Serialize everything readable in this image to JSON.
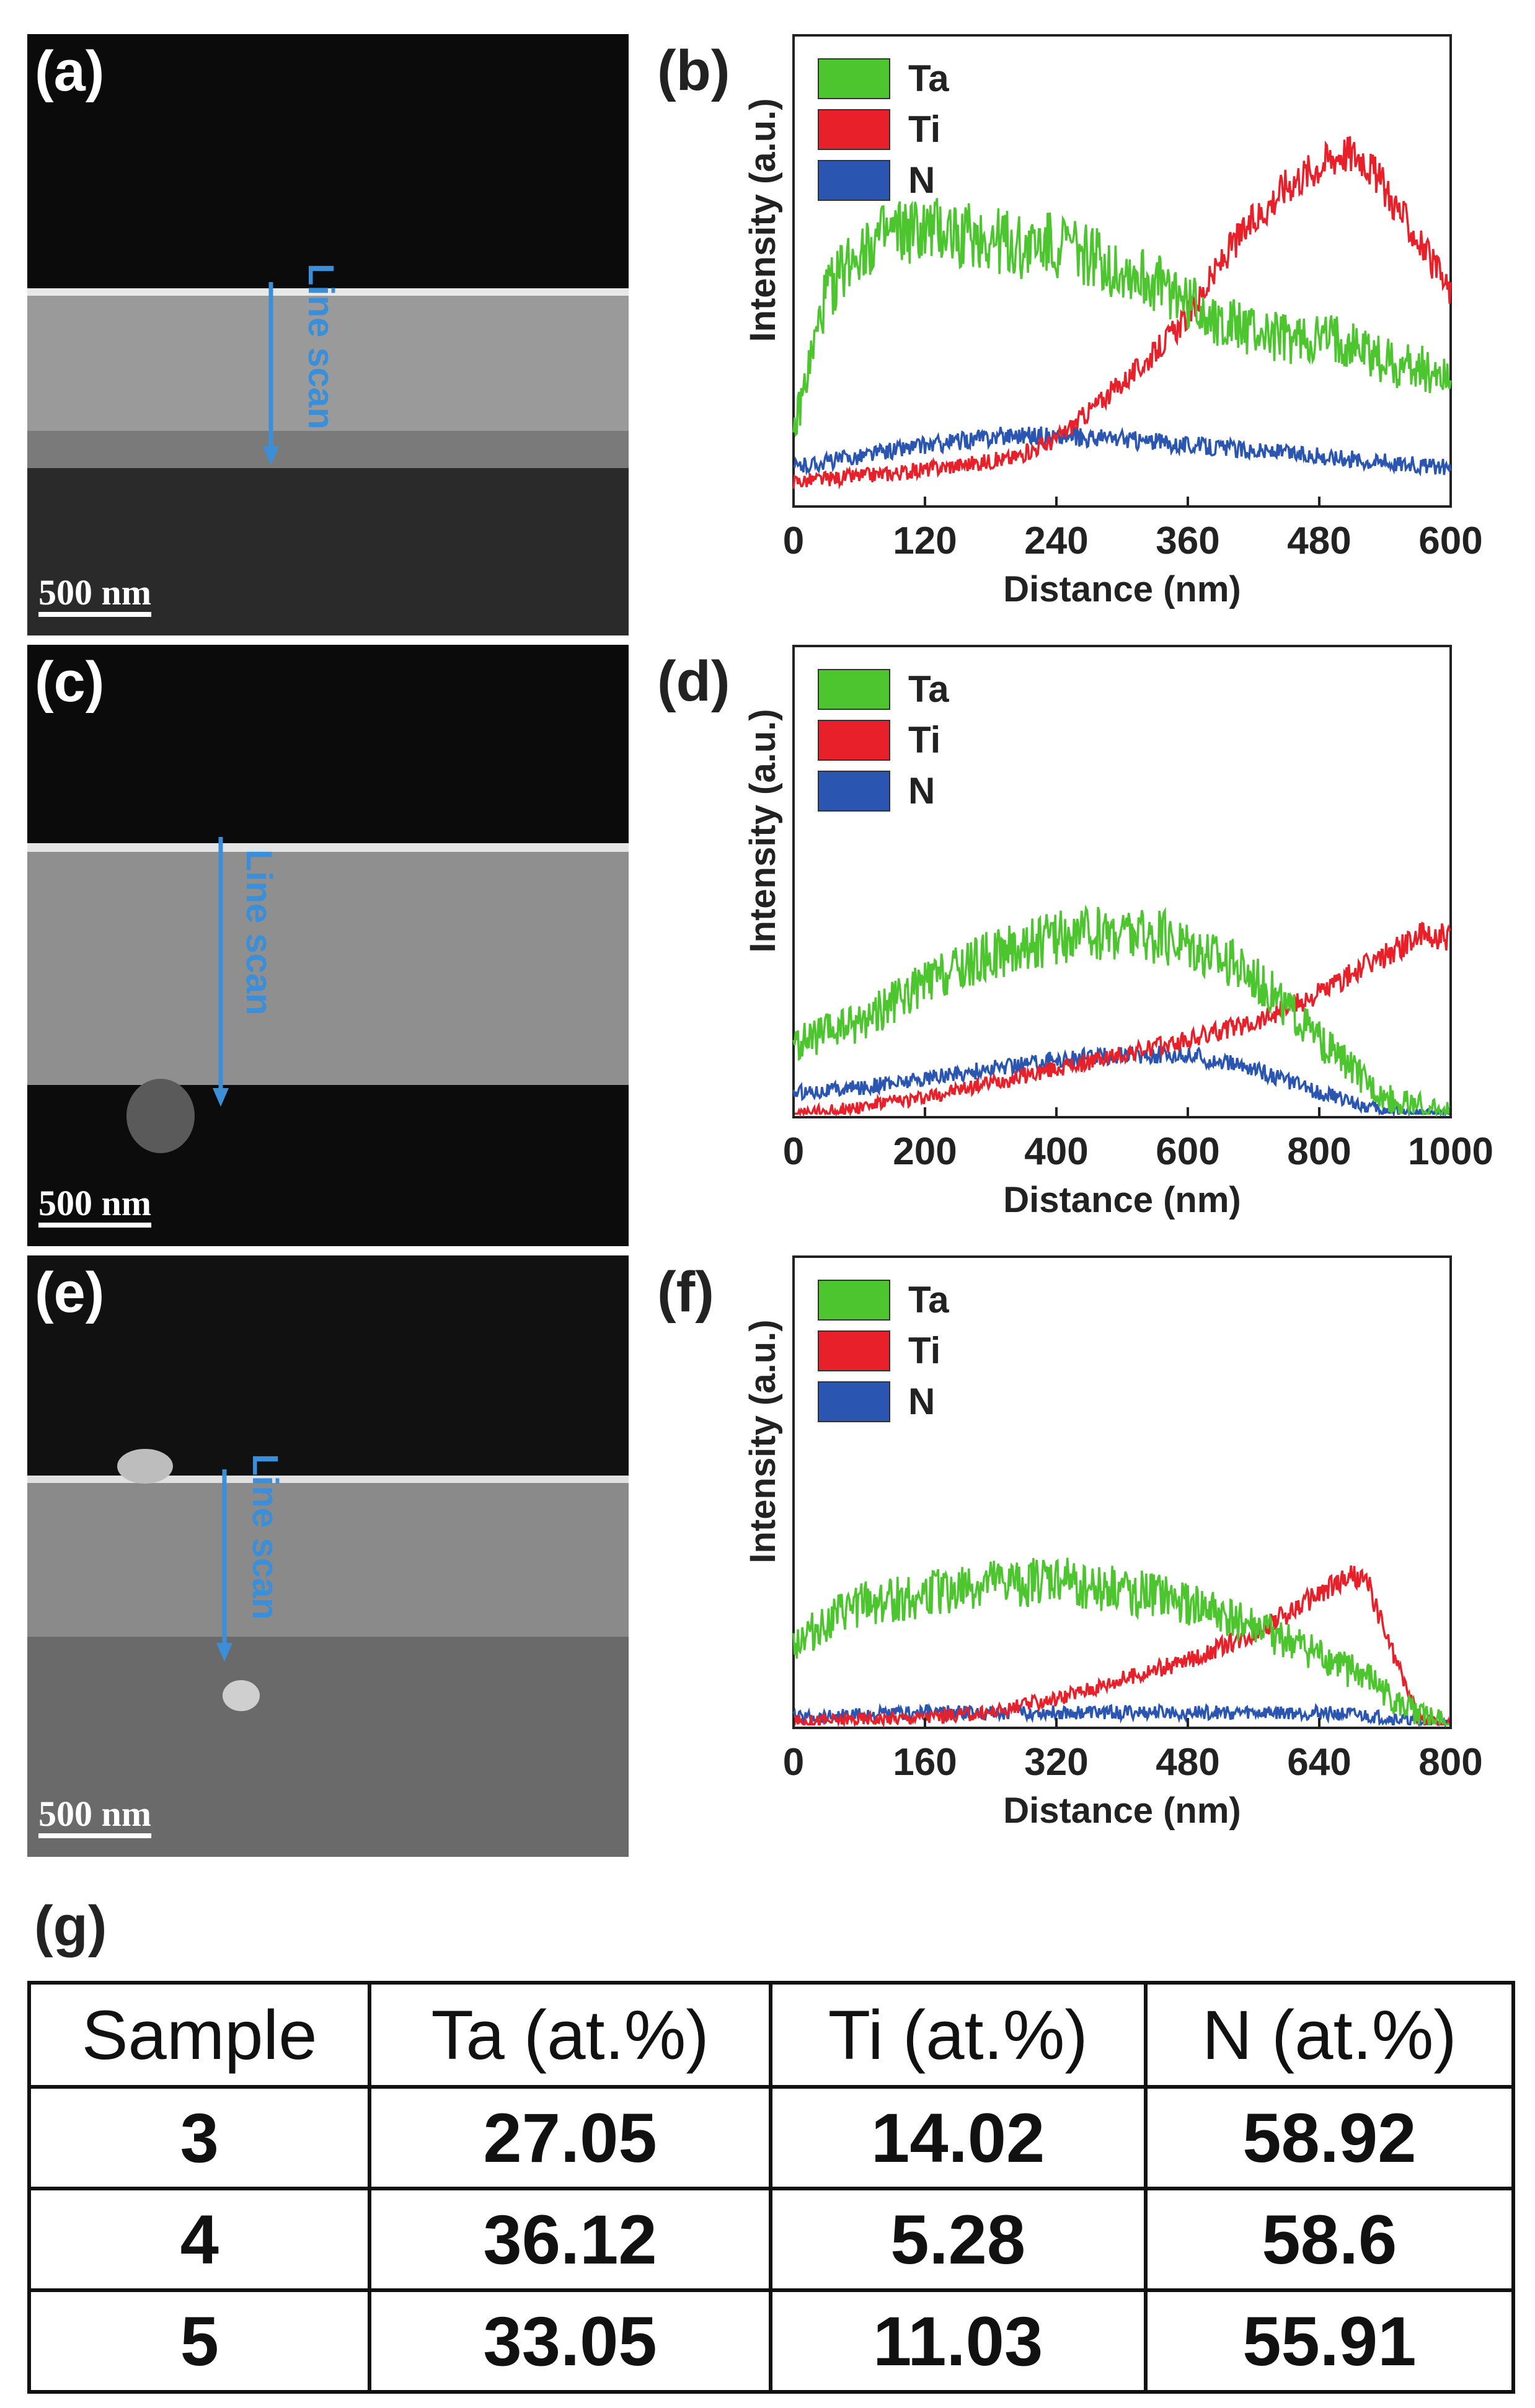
{
  "panels": {
    "a": {
      "label": "(a)",
      "scale_bar": "500 nm",
      "annotation": "Line scan"
    },
    "c": {
      "label": "(c)",
      "scale_bar": "500 nm",
      "annotation": "Line scan"
    },
    "e": {
      "label": "(e)",
      "scale_bar": "500 nm",
      "annotation": "Line scan"
    },
    "g": {
      "label": "(g)"
    }
  },
  "colors": {
    "Ta": "#4cc52f",
    "Ti": "#e8202a",
    "N": "#2a55b0"
  },
  "chart_data": [
    {
      "id": "b",
      "label": "(b)",
      "type": "line",
      "xlabel": "Distance (nm)",
      "ylabel": "Intensity (a.u.)",
      "xlim": [
        0,
        600
      ],
      "xticks": [
        0,
        120,
        240,
        360,
        480,
        600
      ],
      "ylim": [
        0,
        1
      ],
      "legend": [
        "Ta",
        "Ti",
        "N"
      ],
      "legend_position": "top-left",
      "series": [
        {
          "name": "Ta",
          "x": [
            0,
            30,
            60,
            100,
            150,
            200,
            250,
            300,
            350,
            400,
            450,
            500,
            550,
            600
          ],
          "y": [
            0.15,
            0.45,
            0.55,
            0.58,
            0.58,
            0.55,
            0.55,
            0.5,
            0.45,
            0.38,
            0.35,
            0.35,
            0.3,
            0.28
          ]
        },
        {
          "name": "Ti",
          "x": [
            0,
            100,
            200,
            240,
            280,
            320,
            360,
            400,
            450,
            500,
            520,
            560,
            600
          ],
          "y": [
            0.05,
            0.07,
            0.1,
            0.14,
            0.22,
            0.3,
            0.4,
            0.55,
            0.68,
            0.75,
            0.74,
            0.6,
            0.45
          ]
        },
        {
          "name": "N",
          "x": [
            0,
            100,
            200,
            300,
            400,
            500,
            600
          ],
          "y": [
            0.08,
            0.12,
            0.15,
            0.14,
            0.12,
            0.1,
            0.08
          ]
        }
      ]
    },
    {
      "id": "d",
      "label": "(d)",
      "type": "line",
      "xlabel": "Distance (nm)",
      "ylabel": "Intensity (a.u.)",
      "xlim": [
        0,
        1000
      ],
      "xticks": [
        0,
        200,
        400,
        600,
        800,
        1000
      ],
      "ylim": [
        0,
        1
      ],
      "legend": [
        "Ta",
        "Ti",
        "N"
      ],
      "legend_position": "top-left",
      "series": [
        {
          "name": "Ta",
          "x": [
            0,
            100,
            200,
            300,
            400,
            500,
            600,
            700,
            800,
            900,
            1000
          ],
          "y": [
            0.15,
            0.2,
            0.28,
            0.34,
            0.38,
            0.39,
            0.37,
            0.3,
            0.16,
            0.04,
            0.0
          ]
        },
        {
          "name": "Ti",
          "x": [
            0,
            100,
            200,
            300,
            400,
            500,
            600,
            700,
            800,
            900,
            950,
            1000
          ],
          "y": [
            0.0,
            0.02,
            0.04,
            0.07,
            0.1,
            0.13,
            0.16,
            0.2,
            0.26,
            0.34,
            0.38,
            0.38
          ]
        },
        {
          "name": "N",
          "x": [
            0,
            100,
            200,
            300,
            400,
            500,
            600,
            700,
            800,
            900,
            1000
          ],
          "y": [
            0.05,
            0.06,
            0.08,
            0.1,
            0.12,
            0.13,
            0.13,
            0.1,
            0.05,
            0.01,
            0.0
          ]
        }
      ]
    },
    {
      "id": "f",
      "label": "(f)",
      "type": "line",
      "xlabel": "Distance (nm)",
      "ylabel": "Intensity (a.u.)",
      "xlim": [
        0,
        800
      ],
      "xticks": [
        0,
        160,
        320,
        480,
        640,
        800
      ],
      "ylim": [
        0,
        1
      ],
      "legend": [
        "Ta",
        "Ti",
        "N"
      ],
      "legend_position": "top-left",
      "series": [
        {
          "name": "Ta",
          "x": [
            0,
            80,
            160,
            240,
            320,
            400,
            480,
            560,
            640,
            700,
            740,
            800
          ],
          "y": [
            0.18,
            0.26,
            0.28,
            0.3,
            0.31,
            0.29,
            0.26,
            0.21,
            0.15,
            0.1,
            0.04,
            0.0
          ]
        },
        {
          "name": "Ti",
          "x": [
            0,
            160,
            240,
            320,
            400,
            480,
            560,
            640,
            680,
            700,
            720,
            760,
            800
          ],
          "y": [
            0.01,
            0.02,
            0.03,
            0.06,
            0.1,
            0.14,
            0.2,
            0.28,
            0.32,
            0.3,
            0.2,
            0.02,
            0.0
          ]
        },
        {
          "name": "N",
          "x": [
            0,
            160,
            320,
            480,
            640,
            720,
            800
          ],
          "y": [
            0.02,
            0.03,
            0.03,
            0.03,
            0.03,
            0.02,
            0.0
          ]
        }
      ]
    },
    {
      "id": "g",
      "type": "table",
      "columns": [
        "Sample",
        "Ta (at.%)",
        "Ti (at.%)",
        "N (at.%)"
      ],
      "rows": [
        [
          "3",
          "27.05",
          "14.02",
          "58.92"
        ],
        [
          "4",
          "36.12",
          "5.28",
          "58.6"
        ],
        [
          "5",
          "33.05",
          "11.03",
          "55.91"
        ]
      ]
    }
  ]
}
